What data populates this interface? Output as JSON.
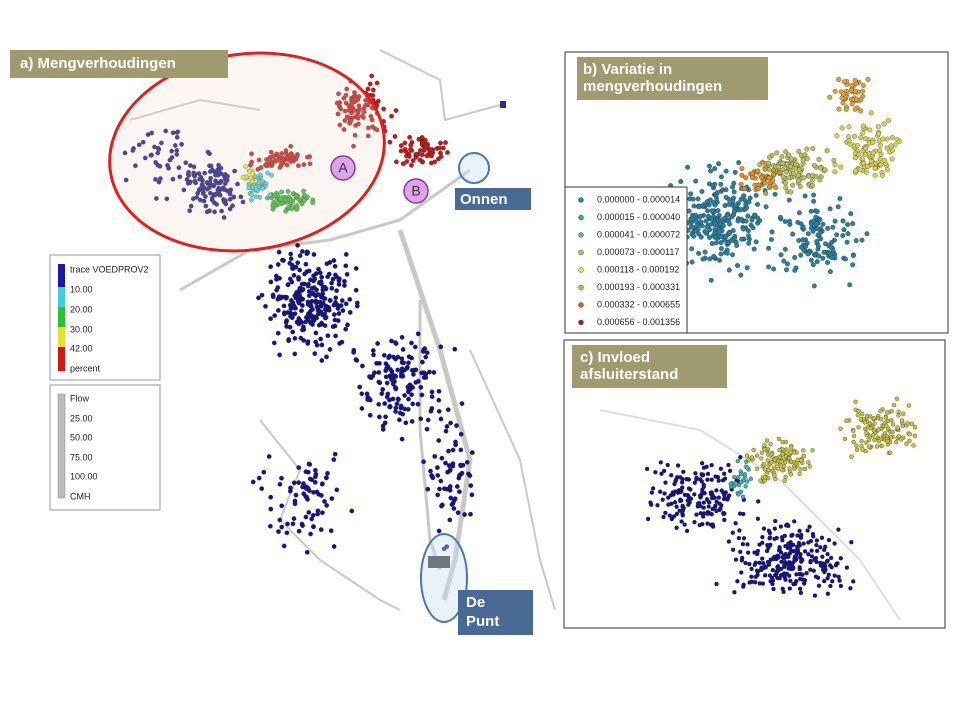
{
  "panel_a": {
    "label": "a) Mengverhoudingen",
    "marker_a": "A",
    "marker_b": "B",
    "place_onnen": "Onnen",
    "place_de_punt": [
      "De",
      "Punt"
    ],
    "legend_trace": {
      "title": "trace VOEDPROV2",
      "items": [
        "10.00",
        "20.00",
        "30.00",
        "42.00"
      ],
      "unit": "percent"
    },
    "legend_flow": {
      "title": "Flow",
      "items": [
        "25.00",
        "50.00",
        "75.00",
        "100.00"
      ],
      "unit": "CMH"
    }
  },
  "panel_b": {
    "label": [
      "b) Variatie in",
      "mengverhoudingen"
    ],
    "legend": [
      "0.000000 - 0.000014",
      "0.000015 - 0.000040",
      "0.000041 - 0.000072",
      "0.000073 - 0.000117",
      "0.000118 - 0.000192",
      "0.000193 - 0.000331",
      "0.000332 - 0.000655",
      "0.000656 - 0.001356"
    ]
  },
  "panel_c": {
    "label": [
      "c) Invloed",
      "afsluiterstand"
    ]
  }
}
